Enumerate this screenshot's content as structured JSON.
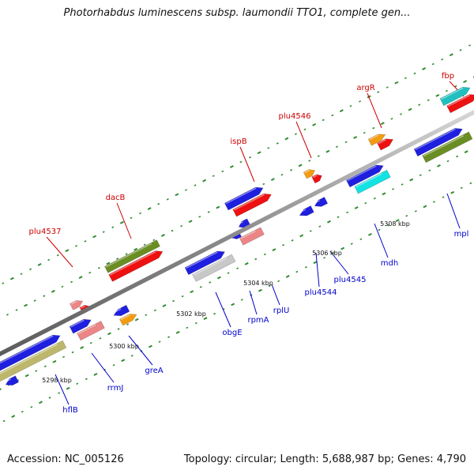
{
  "title": "Photorhabdus luminescens subsp. laumondii TTO1, complete gen...",
  "accession": "Accession: NC_005126",
  "summary": "Topology: circular; Length: 5,688,987 bp; Genes: 4,790",
  "colors": {
    "backbone": "#8c8c8c",
    "top_label": "#cc0000",
    "bottom_label": "#0000cc",
    "tick": "#2e8b2e"
  },
  "scale_ticks": [
    "5298 kbp",
    "5300 kbp",
    "5302 kbp",
    "5304 kbp",
    "5306 kbp",
    "5308 kbp"
  ],
  "genes_top": [
    "plu4537",
    "dacB",
    "ispB",
    "plu4546",
    "argR",
    "fbp"
  ],
  "genes_bottom": [
    "hflB",
    "rrmJ",
    "greA",
    "obgE",
    "rpmA",
    "rplU",
    "plu4544",
    "plu4545",
    "mdh",
    "mpl"
  ]
}
